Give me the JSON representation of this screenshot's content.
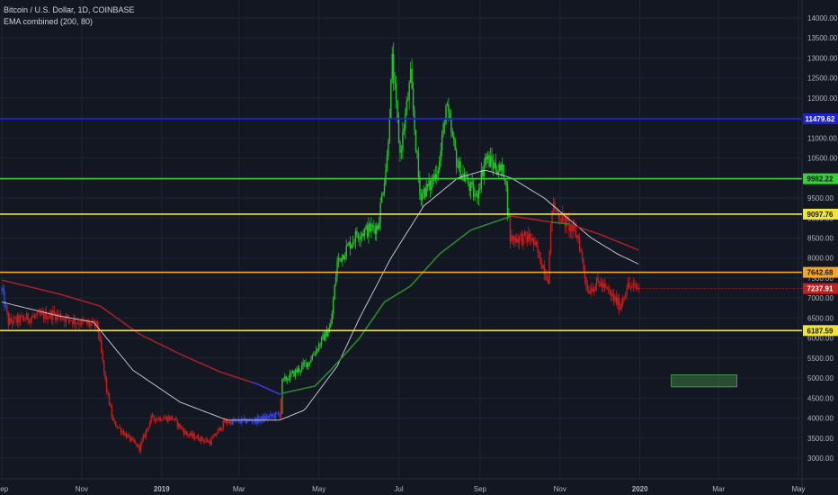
{
  "legend": {
    "symbol": "Bitcoin / U.S. Dollar, 1D, COINBASE",
    "indicator": "EMA combined (200, 80)"
  },
  "colors": {
    "background": "#131722",
    "grid": "#1f2433",
    "text": "#b2b5be",
    "bull": "#27c42b",
    "bear": "#c41e1e",
    "neutral": "#3b43e0",
    "ema80": "#d0d3da",
    "ema200_down": "#a3202a",
    "ema200_up": "#2a8a2a",
    "ema200_neutral": "#3a3ad8"
  },
  "chart_data": {
    "type": "candlestick",
    "x_axis": {
      "labels": [
        "Sep",
        "Nov",
        "2019",
        "Mar",
        "May",
        "Jul",
        "Sep",
        "Nov",
        "2020",
        "Mar",
        "May"
      ],
      "dates": [
        "2018-09-01",
        "2018-11-01",
        "2019-01-01",
        "2019-03-01",
        "2019-05-01",
        "2019-07-01",
        "2019-09-01",
        "2019-11-01",
        "2020-01-01",
        "2020-03-01",
        "2020-05-01"
      ]
    },
    "x_range": [
      "2018-09-01",
      "2020-05-01"
    ],
    "y_axis": {
      "ticks": [
        3000,
        3500,
        4000,
        4500,
        5000,
        5500,
        6000,
        6500,
        7000,
        7500,
        8000,
        8500,
        9000,
        9500,
        10000,
        10500,
        11000,
        11500,
        12000,
        12500,
        13000,
        13500,
        14000
      ],
      "tick_labels": [
        "3000.00",
        "3500.00",
        "4000.00",
        "4500.00",
        "5000.00",
        "5500.00",
        "6000.00",
        "6500.00",
        "7000.00",
        "7500.00",
        "8000.00",
        "8500.00",
        "9000.00",
        "9500.00",
        "10000.00",
        "10500.00",
        "11000.00",
        "11500.00",
        "12000.00",
        "12500.00",
        "13000.00",
        "13500.00",
        "14000.00"
      ]
    },
    "ylim": [
      2600,
      14500
    ],
    "price_anchors": [
      [
        "2018-09-01",
        7200
      ],
      [
        "2018-09-06",
        6400
      ],
      [
        "2018-09-20",
        6500
      ],
      [
        "2018-10-10",
        6600
      ],
      [
        "2018-10-30",
        6400
      ],
      [
        "2018-11-13",
        6300
      ],
      [
        "2018-11-20",
        4700
      ],
      [
        "2018-11-25",
        3900
      ],
      [
        "2018-12-07",
        3500
      ],
      [
        "2018-12-15",
        3250
      ],
      [
        "2018-12-24",
        4000
      ],
      [
        "2019-01-09",
        4000
      ],
      [
        "2019-01-20",
        3600
      ],
      [
        "2019-02-07",
        3400
      ],
      [
        "2019-02-18",
        3900
      ],
      [
        "2019-03-15",
        3950
      ],
      [
        "2019-04-01",
        4100
      ],
      [
        "2019-04-03",
        4900
      ],
      [
        "2019-04-23",
        5400
      ],
      [
        "2019-05-10",
        6300
      ],
      [
        "2019-05-15",
        7900
      ],
      [
        "2019-05-30",
        8600
      ],
      [
        "2019-06-15",
        8800
      ],
      [
        "2019-06-22",
        10500
      ],
      [
        "2019-06-26",
        12900
      ],
      [
        "2019-07-02",
        10600
      ],
      [
        "2019-07-10",
        12500
      ],
      [
        "2019-07-17",
        9600
      ],
      [
        "2019-07-25",
        9800
      ],
      [
        "2019-08-01",
        10400
      ],
      [
        "2019-08-06",
        11800
      ],
      [
        "2019-08-15",
        10300
      ],
      [
        "2019-08-29",
        9500
      ],
      [
        "2019-09-05",
        10500
      ],
      [
        "2019-09-20",
        10100
      ],
      [
        "2019-09-24",
        8500
      ],
      [
        "2019-10-10",
        8500
      ],
      [
        "2019-10-23",
        7500
      ],
      [
        "2019-10-26",
        9300
      ],
      [
        "2019-11-08",
        8800
      ],
      [
        "2019-11-15",
        8500
      ],
      [
        "2019-11-22",
        7200
      ],
      [
        "2019-12-01",
        7400
      ],
      [
        "2019-12-17",
        6800
      ],
      [
        "2019-12-22",
        7300
      ],
      [
        "2019-12-31",
        7238
      ]
    ],
    "ema80_anchors": [
      [
        "2018-09-01",
        6900
      ],
      [
        "2018-10-15",
        6550
      ],
      [
        "2018-11-10",
        6400
      ],
      [
        "2018-12-10",
        5200
      ],
      [
        "2019-01-15",
        4400
      ],
      [
        "2019-02-20",
        3950
      ],
      [
        "2019-04-01",
        3950
      ],
      [
        "2019-04-20",
        4200
      ],
      [
        "2019-05-15",
        5300
      ],
      [
        "2019-06-01",
        6500
      ],
      [
        "2019-06-25",
        8000
      ],
      [
        "2019-07-20",
        9300
      ],
      [
        "2019-08-15",
        10000
      ],
      [
        "2019-09-05",
        10200
      ],
      [
        "2019-09-25",
        10000
      ],
      [
        "2019-10-20",
        9500
      ],
      [
        "2019-11-05",
        9050
      ],
      [
        "2019-11-25",
        8500
      ],
      [
        "2019-12-15",
        8100
      ],
      [
        "2019-12-31",
        7850
      ]
    ],
    "ema200_anchors": [
      [
        "2018-09-01",
        7450
      ],
      [
        "2018-10-15",
        7100
      ],
      [
        "2018-11-15",
        6800
      ],
      [
        "2018-12-15",
        6100
      ],
      [
        "2019-01-15",
        5600
      ],
      [
        "2019-02-15",
        5150
      ],
      [
        "2019-03-15",
        4850
      ],
      [
        "2019-04-01",
        4600
      ],
      [
        "2019-04-03",
        4620
      ],
      [
        "2019-04-28",
        4800
      ],
      [
        "2019-05-10",
        5200
      ],
      [
        "2019-06-01",
        6000
      ],
      [
        "2019-06-20",
        6900
      ],
      [
        "2019-07-10",
        7300
      ],
      [
        "2019-08-01",
        8100
      ],
      [
        "2019-08-25",
        8700
      ],
      [
        "2019-09-25",
        9050
      ],
      [
        "2019-10-25",
        8900
      ],
      [
        "2019-11-08",
        8850
      ],
      [
        "2019-12-01",
        8600
      ],
      [
        "2019-12-31",
        8200
      ]
    ],
    "horizontal_levels": [
      {
        "value": 11479.62,
        "label": "11479.62",
        "color": "#2020e0"
      },
      {
        "value": 9982.22,
        "label": "9982.22",
        "color": "#31d431"
      },
      {
        "value": 9097.76,
        "label": "9097.76",
        "color": "#f0e436"
      },
      {
        "value": 7642.68,
        "label": "7642.68",
        "color": "#f5a623"
      },
      {
        "value": 6187.59,
        "label": "6187.59",
        "color": "#f0e436"
      }
    ],
    "last_price": {
      "value": 7237.91,
      "label": "7237.91",
      "color": "#c41e1e"
    },
    "rectangle": {
      "x0": "2020-01-25",
      "x1": "2020-03-15",
      "y0": 4780,
      "y1": 5080
    }
  }
}
